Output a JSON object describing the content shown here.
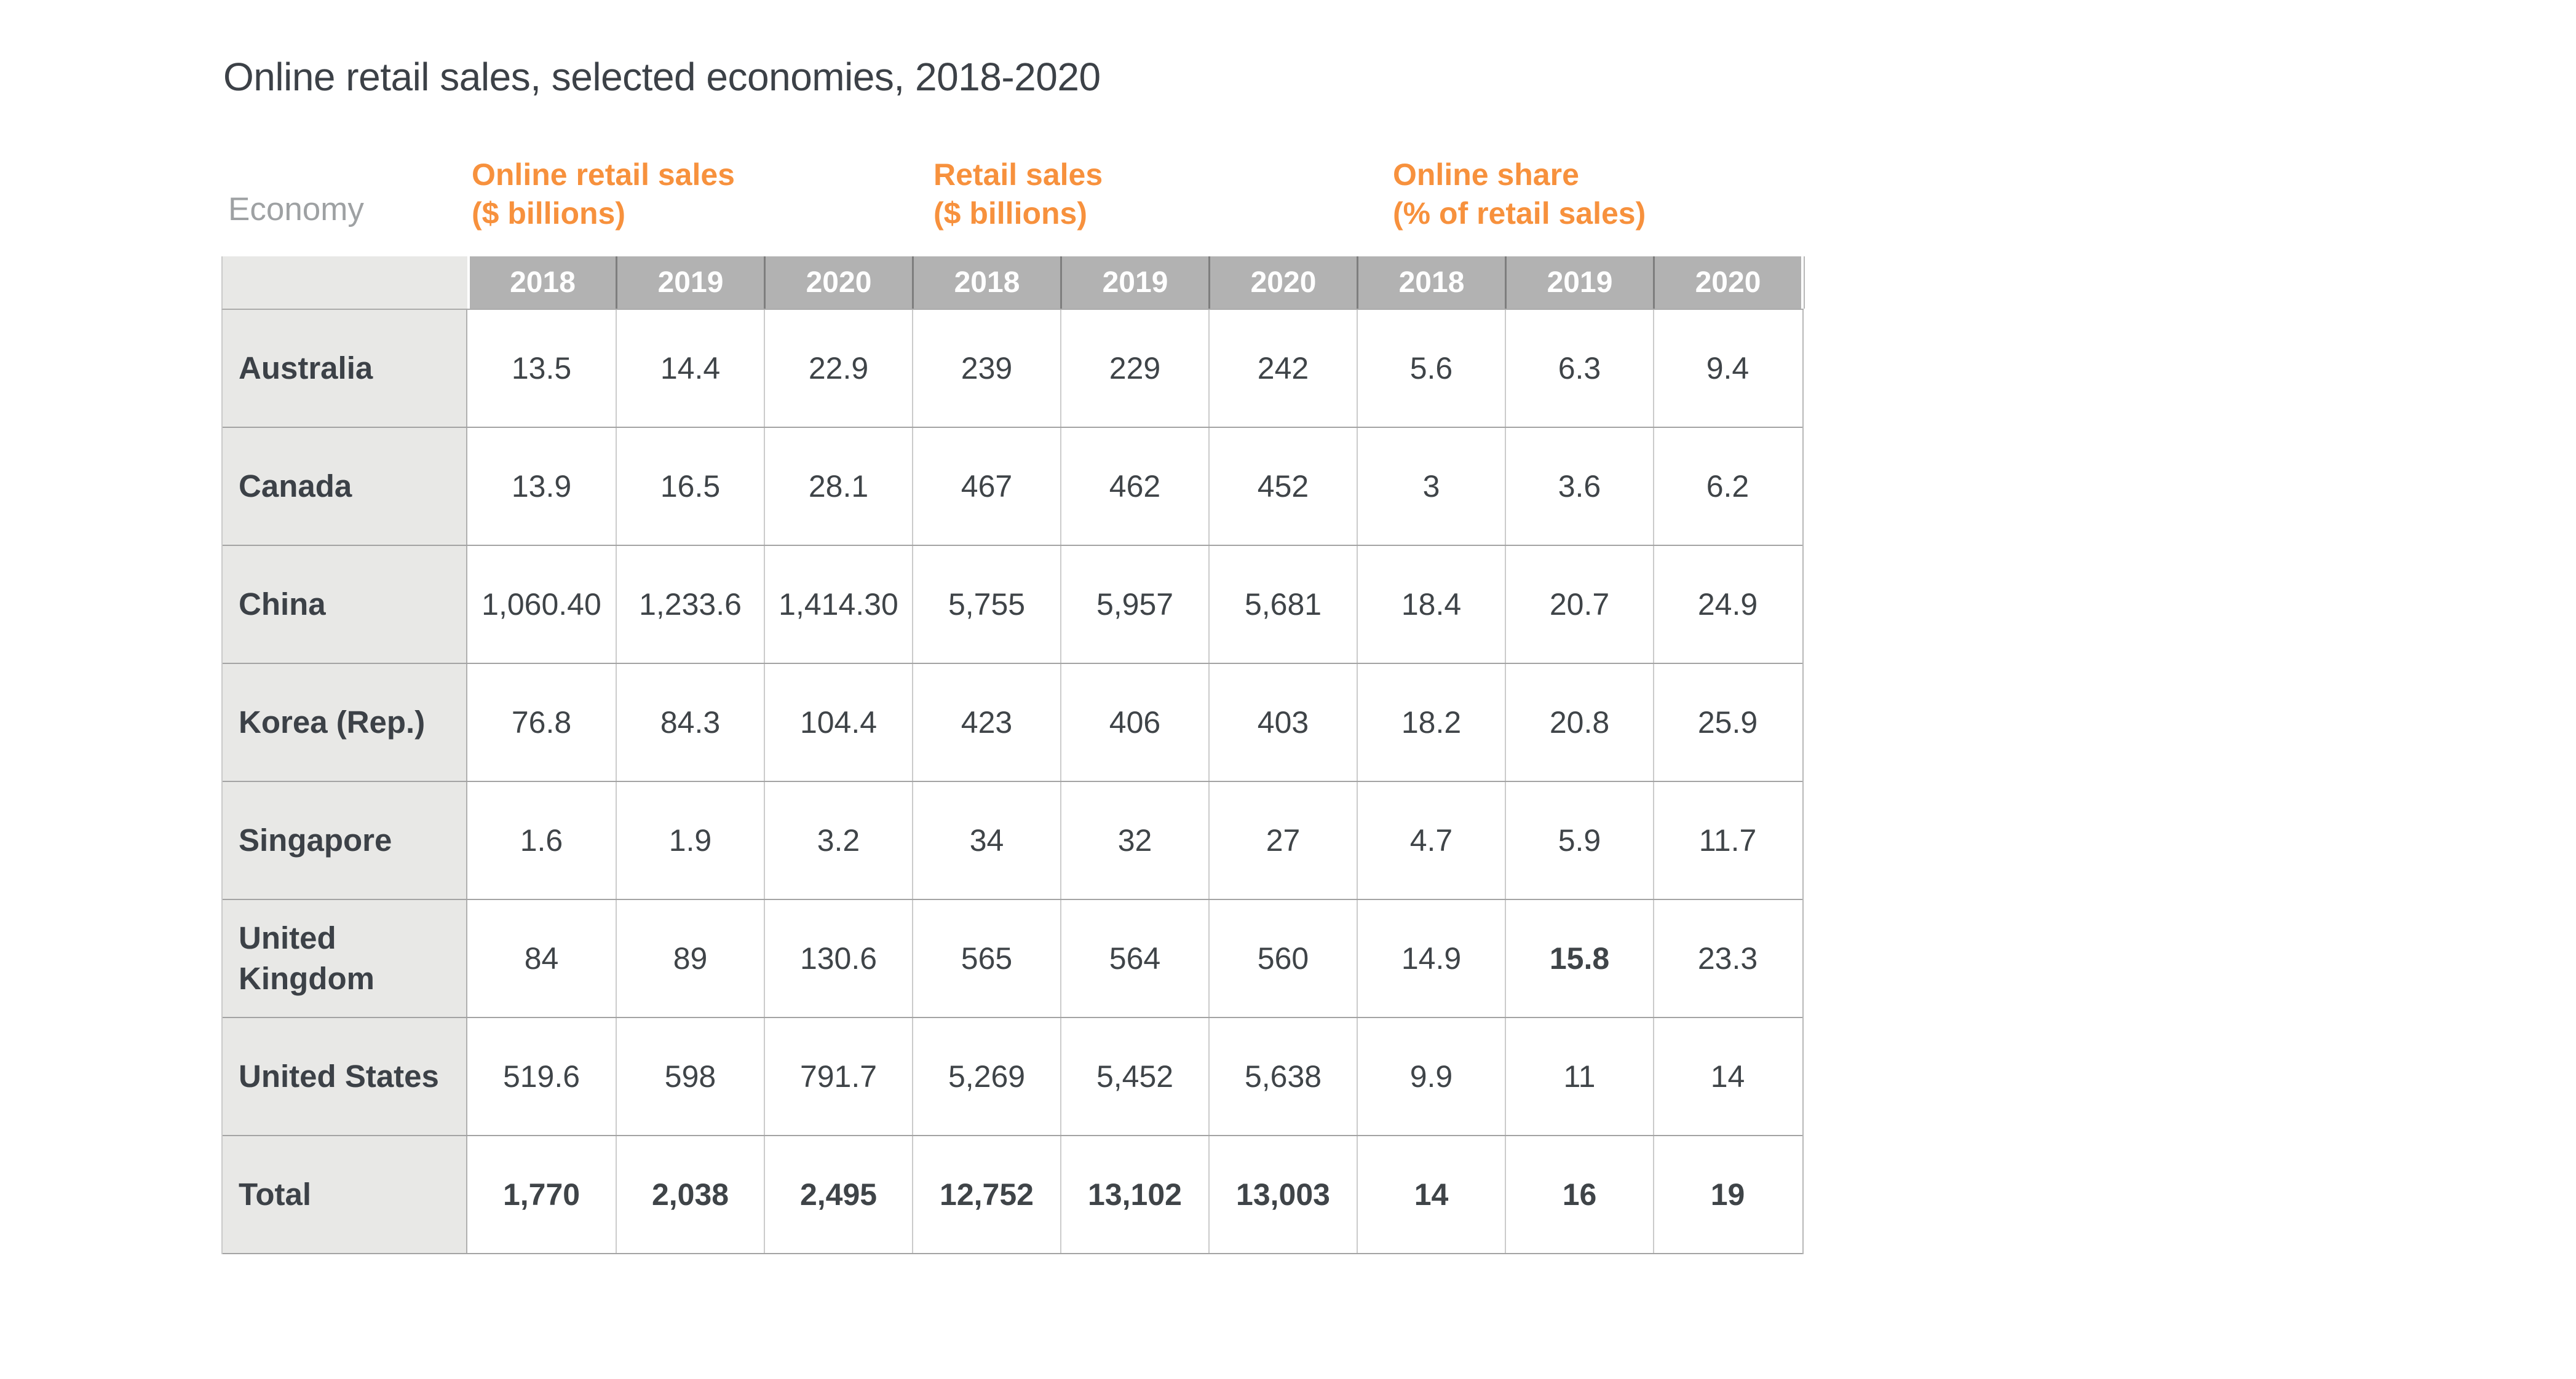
{
  "title": "Online retail sales, selected economies, 2018-2020",
  "chart_data": {
    "type": "table",
    "title": "Online retail sales, selected economies, 2018-2020",
    "row_header": "Economy",
    "column_groups": [
      {
        "label": "Online retail sales",
        "sublabel": "($ billions)",
        "years": [
          "2018",
          "2019",
          "2020"
        ]
      },
      {
        "label": "Retail sales",
        "sublabel": "($ billions)",
        "years": [
          "2018",
          "2019",
          "2020"
        ]
      },
      {
        "label": "Online share",
        "sublabel": "(% of retail sales)",
        "years": [
          "2018",
          "2019",
          "2020"
        ]
      }
    ],
    "rows": [
      {
        "economy": "Australia",
        "online_retail_sales": [
          "13.5",
          "14.4",
          "22.9"
        ],
        "retail_sales": [
          "239",
          "229",
          "242"
        ],
        "online_share": [
          "5.6",
          "6.3",
          "9.4"
        ]
      },
      {
        "economy": "Canada",
        "online_retail_sales": [
          "13.9",
          "16.5",
          "28.1"
        ],
        "retail_sales": [
          "467",
          "462",
          "452"
        ],
        "online_share": [
          "3",
          "3.6",
          "6.2"
        ]
      },
      {
        "economy": "China",
        "online_retail_sales": [
          "1,060.40",
          "1,233.6",
          "1,414.30"
        ],
        "retail_sales": [
          "5,755",
          "5,957",
          "5,681"
        ],
        "online_share": [
          "18.4",
          "20.7",
          "24.9"
        ]
      },
      {
        "economy": "Korea (Rep.)",
        "online_retail_sales": [
          "76.8",
          "84.3",
          "104.4"
        ],
        "retail_sales": [
          "423",
          "406",
          "403"
        ],
        "online_share": [
          "18.2",
          "20.8",
          "25.9"
        ]
      },
      {
        "economy": "Singapore",
        "online_retail_sales": [
          "1.6",
          "1.9",
          "3.2"
        ],
        "retail_sales": [
          "34",
          "32",
          "27"
        ],
        "online_share": [
          "4.7",
          "5.9",
          "11.7"
        ]
      },
      {
        "economy": "United Kingdom",
        "online_retail_sales": [
          "84",
          "89",
          "130.6"
        ],
        "retail_sales": [
          "565",
          "564",
          "560"
        ],
        "online_share": [
          "14.9",
          "15.8",
          "23.3"
        ],
        "bold_indices": [
          7
        ]
      },
      {
        "economy": "United States",
        "online_retail_sales": [
          "519.6",
          "598",
          "791.7"
        ],
        "retail_sales": [
          "5,269",
          "5,452",
          "5,638"
        ],
        "online_share": [
          "9.9",
          "11",
          "14"
        ]
      },
      {
        "economy": "Total",
        "online_retail_sales": [
          "1,770",
          "2,038",
          "2,495"
        ],
        "retail_sales": [
          "12,752",
          "13,102",
          "13,003"
        ],
        "online_share": [
          "14",
          "16",
          "19"
        ],
        "is_total": true
      }
    ]
  },
  "colors": {
    "accent_orange": "#F7913D",
    "year_band_gray": "#B2B2B2",
    "economy_cell_gray": "#E8E8E6",
    "text_dark": "#3C4147",
    "muted_label_gray": "#9EA1A3"
  }
}
